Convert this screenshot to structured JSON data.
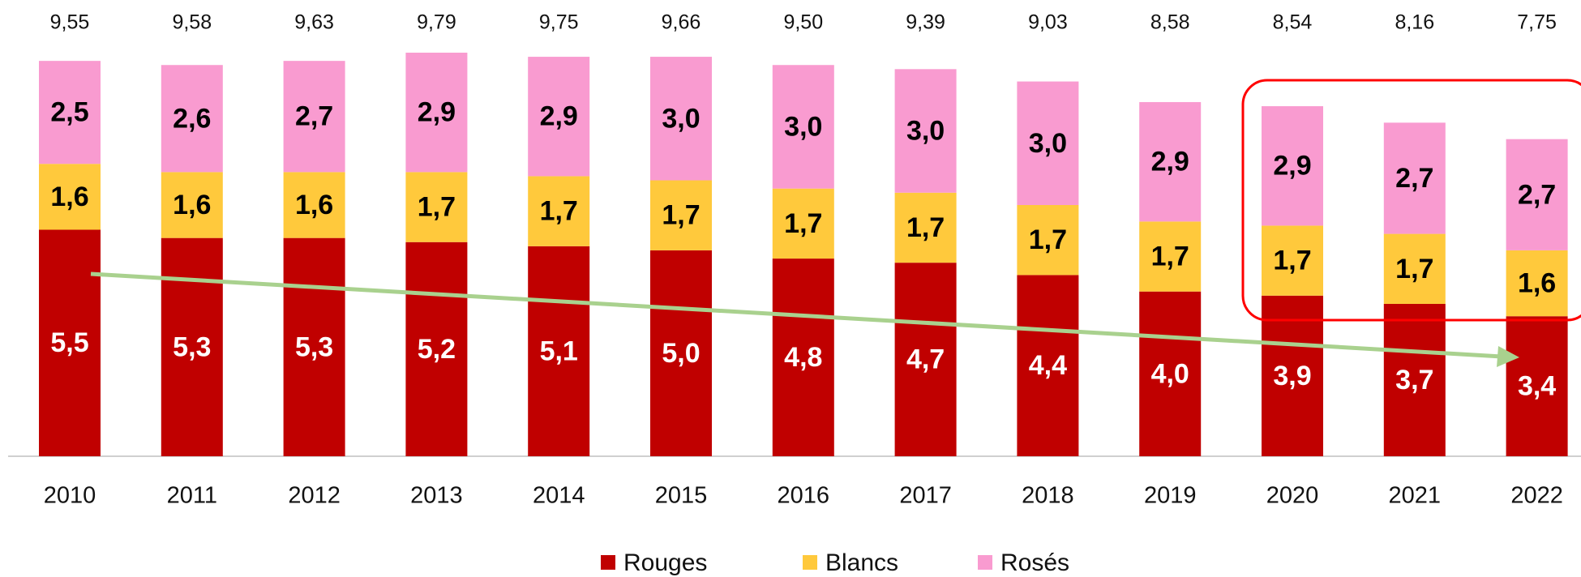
{
  "chart_data": {
    "type": "stacked_bar",
    "categories": [
      "2010",
      "2011",
      "2012",
      "2013",
      "2014",
      "2015",
      "2016",
      "2017",
      "2018",
      "2019",
      "2020",
      "2021",
      "2022"
    ],
    "series": [
      {
        "name": "Rouges",
        "color": "#c00000",
        "values": [
          5.5,
          5.3,
          5.3,
          5.2,
          5.1,
          5.0,
          4.8,
          4.7,
          4.4,
          4.0,
          3.9,
          3.7,
          3.4
        ],
        "value_labels": [
          "5,5",
          "5,3",
          "5,3",
          "5,2",
          "5,1",
          "5,0",
          "4,8",
          "4,7",
          "4,4",
          "4,0",
          "3,9",
          "3,7",
          "3,4"
        ]
      },
      {
        "name": "Blancs",
        "color": "#ffc93c",
        "values": [
          1.6,
          1.6,
          1.6,
          1.7,
          1.7,
          1.7,
          1.7,
          1.7,
          1.7,
          1.7,
          1.7,
          1.7,
          1.6
        ],
        "value_labels": [
          "1,6",
          "1,6",
          "1,6",
          "1,7",
          "1,7",
          "1,7",
          "1,7",
          "1,7",
          "1,7",
          "1,7",
          "1,7",
          "1,7",
          "1,6"
        ]
      },
      {
        "name": "Rosés",
        "color": "#f99bd0",
        "values": [
          2.5,
          2.6,
          2.7,
          2.9,
          2.9,
          3.0,
          3.0,
          3.0,
          3.0,
          2.9,
          2.9,
          2.7,
          2.7
        ],
        "value_labels": [
          "2,5",
          "2,6",
          "2,7",
          "2,9",
          "2,9",
          "3,0",
          "3,0",
          "3,0",
          "3,0",
          "2,9",
          "2,9",
          "2,7",
          "2,7"
        ]
      }
    ],
    "totals": {
      "values": [
        9.55,
        9.58,
        9.63,
        9.79,
        9.75,
        9.66,
        9.5,
        9.39,
        9.03,
        8.58,
        8.54,
        8.16,
        7.75
      ],
      "value_labels": [
        "9,55",
        "9,58",
        "9,63",
        "9,79",
        "9,75",
        "9,66",
        "9,50",
        "9,39",
        "9,03",
        "8,58",
        "8,54",
        "8,16",
        "7,75"
      ]
    },
    "ylim": [
      0,
      11
    ]
  }
}
